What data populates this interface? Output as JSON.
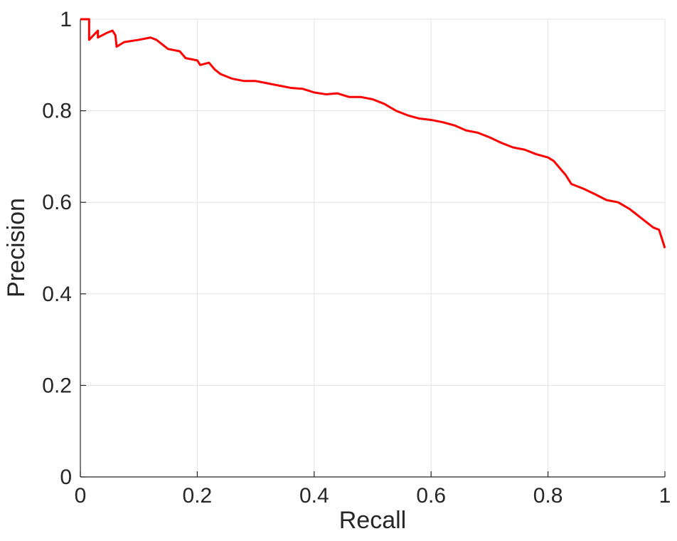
{
  "chart_data": {
    "type": "line",
    "xlabel": "Recall",
    "ylabel": "Precision",
    "x": [
      0,
      0.015,
      0.015,
      0.03,
      0.03,
      0.045,
      0.055,
      0.06,
      0.062,
      0.075,
      0.1,
      0.12,
      0.13,
      0.14,
      0.15,
      0.17,
      0.18,
      0.2,
      0.205,
      0.22,
      0.23,
      0.24,
      0.26,
      0.28,
      0.3,
      0.32,
      0.34,
      0.36,
      0.38,
      0.4,
      0.42,
      0.44,
      0.46,
      0.48,
      0.5,
      0.52,
      0.54,
      0.56,
      0.58,
      0.6,
      0.62,
      0.64,
      0.66,
      0.68,
      0.7,
      0.72,
      0.74,
      0.76,
      0.78,
      0.8,
      0.81,
      0.82,
      0.83,
      0.84,
      0.86,
      0.88,
      0.9,
      0.92,
      0.94,
      0.96,
      0.98,
      0.99,
      0.995,
      1
    ],
    "values": [
      1,
      1,
      0.955,
      0.975,
      0.96,
      0.97,
      0.975,
      0.965,
      0.94,
      0.95,
      0.955,
      0.96,
      0.955,
      0.945,
      0.935,
      0.93,
      0.915,
      0.91,
      0.9,
      0.905,
      0.89,
      0.88,
      0.87,
      0.865,
      0.865,
      0.86,
      0.855,
      0.85,
      0.848,
      0.84,
      0.836,
      0.838,
      0.83,
      0.83,
      0.825,
      0.815,
      0.8,
      0.79,
      0.783,
      0.78,
      0.775,
      0.768,
      0.757,
      0.752,
      0.742,
      0.73,
      0.72,
      0.715,
      0.705,
      0.698,
      0.69,
      0.675,
      0.66,
      0.64,
      0.63,
      0.618,
      0.605,
      0.6,
      0.585,
      0.565,
      0.545,
      0.54,
      0.52,
      0.5
    ],
    "color": "#ff0000",
    "xlim": [
      0,
      1
    ],
    "ylim": [
      0,
      1
    ],
    "xticks": [
      0,
      0.2,
      0.4,
      0.6,
      0.8,
      1
    ],
    "yticks": [
      0,
      0.2,
      0.4,
      0.6,
      0.8,
      1
    ],
    "grid": true
  }
}
